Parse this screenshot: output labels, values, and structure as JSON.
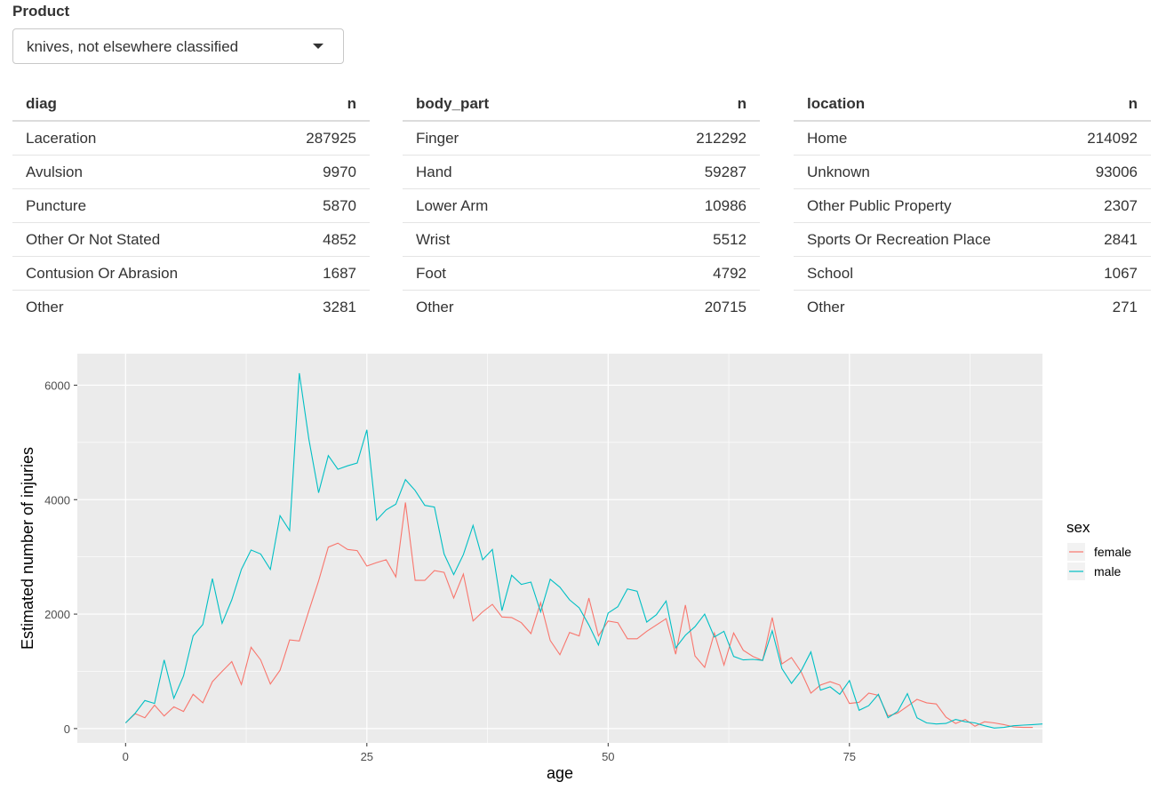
{
  "product": {
    "label": "Product",
    "selected": "knives, not elsewhere classified"
  },
  "tables": {
    "diag": {
      "col1": "diag",
      "col2": "n",
      "rows": [
        [
          "Laceration",
          "287925"
        ],
        [
          "Avulsion",
          "9970"
        ],
        [
          "Puncture",
          "5870"
        ],
        [
          "Other Or Not Stated",
          "4852"
        ],
        [
          "Contusion Or Abrasion",
          "1687"
        ],
        [
          "Other",
          "3281"
        ]
      ]
    },
    "body_part": {
      "col1": "body_part",
      "col2": "n",
      "rows": [
        [
          "Finger",
          "212292"
        ],
        [
          "Hand",
          "59287"
        ],
        [
          "Lower Arm",
          "10986"
        ],
        [
          "Wrist",
          "5512"
        ],
        [
          "Foot",
          "4792"
        ],
        [
          "Other",
          "20715"
        ]
      ]
    },
    "location": {
      "col1": "location",
      "col2": "n",
      "rows": [
        [
          "Home",
          "214092"
        ],
        [
          "Unknown",
          "93006"
        ],
        [
          "Other Public Property",
          "2307"
        ],
        [
          "Sports Or Recreation Place",
          "2841"
        ],
        [
          "School",
          "1067"
        ],
        [
          "Other",
          "271"
        ]
      ]
    }
  },
  "chart_data": {
    "type": "line",
    "xlabel": "age",
    "ylabel": "Estimated number of injuries",
    "xlim": [
      -5,
      95
    ],
    "ylim": [
      -250,
      6550
    ],
    "xticks": [
      0,
      25,
      50,
      75
    ],
    "yticks": [
      0,
      2000,
      4000,
      6000
    ],
    "grid": true,
    "legend_title": "sex",
    "legend_position": "right",
    "colors": {
      "panel": "#EBEBEB",
      "grid": "#FFFFFF"
    },
    "series": [
      {
        "name": "female",
        "color": "#F8766D",
        "x": [
          0,
          1,
          2,
          3,
          4,
          5,
          6,
          7,
          8,
          9,
          10,
          11,
          12,
          13,
          14,
          15,
          16,
          17,
          18,
          19,
          20,
          21,
          22,
          23,
          24,
          25,
          26,
          27,
          28,
          29,
          30,
          31,
          32,
          33,
          34,
          35,
          36,
          37,
          38,
          39,
          40,
          41,
          42,
          43,
          44,
          45,
          46,
          47,
          48,
          49,
          50,
          51,
          52,
          53,
          54,
          55,
          56,
          57,
          58,
          59,
          60,
          61,
          62,
          63,
          64,
          65,
          66,
          67,
          68,
          69,
          70,
          71,
          72,
          73,
          74,
          75,
          76,
          77,
          78,
          79,
          80,
          81,
          82,
          83,
          84,
          85,
          86,
          87,
          88,
          89,
          90,
          91,
          92,
          93,
          94
        ],
        "y": [
          100,
          260,
          190,
          410,
          220,
          380,
          300,
          600,
          450,
          820,
          1000,
          1170,
          770,
          1420,
          1200,
          780,
          1020,
          1550,
          1530,
          2060,
          2580,
          3170,
          3240,
          3130,
          3110,
          2840,
          2900,
          2950,
          2650,
          3950,
          2590,
          2590,
          2760,
          2730,
          2280,
          2700,
          1880,
          2040,
          2170,
          1950,
          1940,
          1850,
          1660,
          2200,
          1540,
          1290,
          1680,
          1620,
          2280,
          1620,
          1880,
          1850,
          1570,
          1570,
          1700,
          1810,
          1920,
          1300,
          2160,
          1270,
          1070,
          1670,
          1110,
          1670,
          1370,
          1260,
          1190,
          1940,
          1130,
          1240,
          990,
          620,
          760,
          820,
          760,
          440,
          460,
          620,
          580,
          220,
          270,
          390,
          510,
          450,
          430,
          200,
          90,
          160,
          40,
          120,
          100,
          70,
          30,
          20,
          20
        ]
      },
      {
        "name": "male",
        "color": "#00BFC4",
        "x": [
          0,
          1,
          2,
          3,
          4,
          5,
          6,
          7,
          8,
          9,
          10,
          11,
          12,
          13,
          14,
          15,
          16,
          17,
          18,
          19,
          20,
          21,
          22,
          23,
          24,
          25,
          26,
          27,
          28,
          29,
          30,
          31,
          32,
          33,
          34,
          35,
          36,
          37,
          38,
          39,
          40,
          41,
          42,
          43,
          44,
          45,
          46,
          47,
          48,
          49,
          50,
          51,
          52,
          53,
          54,
          55,
          56,
          57,
          58,
          59,
          60,
          61,
          62,
          63,
          64,
          65,
          66,
          67,
          68,
          69,
          70,
          71,
          72,
          73,
          74,
          75,
          76,
          77,
          78,
          79,
          80,
          81,
          82,
          83,
          84,
          85,
          86,
          87,
          88,
          89,
          90,
          91,
          92,
          93,
          94,
          95
        ],
        "y": [
          100,
          270,
          490,
          440,
          1200,
          530,
          920,
          1620,
          1820,
          2620,
          1840,
          2250,
          2780,
          3120,
          3050,
          2780,
          3720,
          3460,
          6210,
          5050,
          4120,
          4770,
          4530,
          4590,
          4640,
          5220,
          3640,
          3820,
          3920,
          4350,
          4160,
          3900,
          3870,
          3050,
          2690,
          3040,
          3550,
          2950,
          3130,
          2060,
          2680,
          2520,
          2560,
          2040,
          2610,
          2470,
          2250,
          2110,
          1810,
          1460,
          2020,
          2130,
          2440,
          2400,
          1860,
          1990,
          2230,
          1410,
          1630,
          1780,
          2000,
          1600,
          1700,
          1260,
          1200,
          1210,
          1190,
          1710,
          1050,
          790,
          1010,
          1340,
          670,
          730,
          600,
          840,
          320,
          400,
          600,
          190,
          300,
          610,
          190,
          100,
          80,
          90,
          160,
          120,
          100,
          50,
          10,
          20,
          50,
          60,
          70,
          80
        ]
      }
    ]
  }
}
